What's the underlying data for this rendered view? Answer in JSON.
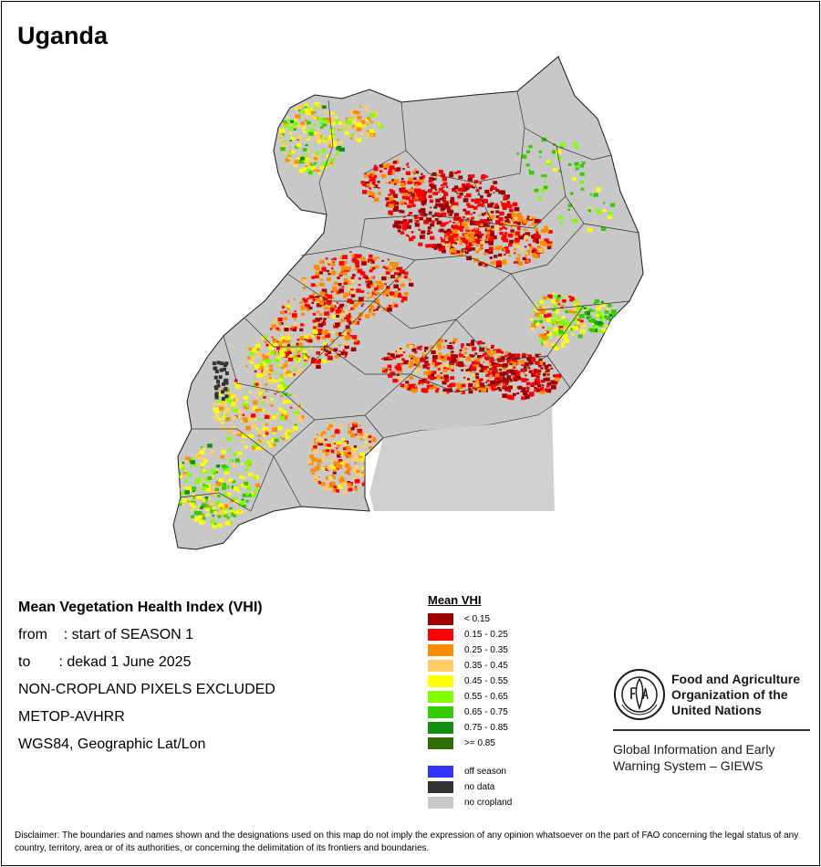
{
  "map": {
    "title": "Uganda",
    "info_lines": [
      "Mean Vegetation Health Index (VHI)",
      "from    : start of SEASON 1",
      "to       : dekad 1 June 2025",
      "NON-CROPLAND PIXELS EXCLUDED",
      "METOP-AVHRR",
      "WGS84, Geographic Lat/Lon"
    ]
  },
  "legend": {
    "title": "Mean VHI",
    "classes": [
      {
        "label": "< 0.15",
        "color": "#a00000"
      },
      {
        "label": "0.15 - 0.25",
        "color": "#ff0000"
      },
      {
        "label": "0.25 - 0.35",
        "color": "#ff8c00"
      },
      {
        "label": "0.35 - 0.45",
        "color": "#ffcc66"
      },
      {
        "label": "0.45 - 0.55",
        "color": "#ffff00"
      },
      {
        "label": "0.55 - 0.65",
        "color": "#80ff00"
      },
      {
        "label": "0.65 - 0.75",
        "color": "#33cc00"
      },
      {
        "label": "0.75 - 0.85",
        "color": "#109010"
      },
      {
        "label": ">= 0.85",
        "color": "#2d6e00"
      }
    ],
    "special": [
      {
        "label": "off season",
        "color": "#3333ff"
      },
      {
        "label": "no data",
        "color": "#333333"
      },
      {
        "label": "no cropland",
        "color": "#c8c8c8"
      }
    ]
  },
  "logo": {
    "org_line1": "Food and Agriculture",
    "org_line2": "Organization of the",
    "org_line3": "United Nations",
    "program_line1": "Global Information and Early",
    "program_line2": "Warning System – GIEWS"
  },
  "disclaimer": "Disclaimer: The boundaries and names shown and the designations used on this map do not imply the expression of any opinion whatsoever on the part of FAO concerning the legal status of any country, territory, area or of its authorities, or concerning the delimitation of its frontiers and boundaries."
}
